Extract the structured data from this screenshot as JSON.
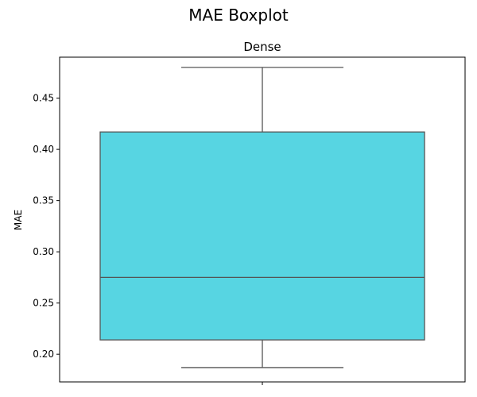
{
  "figure": {
    "suptitle": "MAE Boxplot"
  },
  "chart_data": {
    "type": "boxplot",
    "title": "Dense",
    "xlabel": "",
    "ylabel": "MAE",
    "ylim": [
      0.173,
      0.49
    ],
    "yticks": [
      0.2,
      0.25,
      0.3,
      0.35,
      0.4,
      0.45
    ],
    "ytick_labels": [
      "0.20",
      "0.25",
      "0.30",
      "0.35",
      "0.40",
      "0.45"
    ],
    "grid": false,
    "box": {
      "whisker_low": 0.187,
      "q1": 0.214,
      "median": 0.275,
      "q3": 0.417,
      "whisker_high": 0.48
    },
    "colors": {
      "box_fill": "#57d5e2",
      "line": "#555555",
      "spine": "#000000"
    }
  }
}
